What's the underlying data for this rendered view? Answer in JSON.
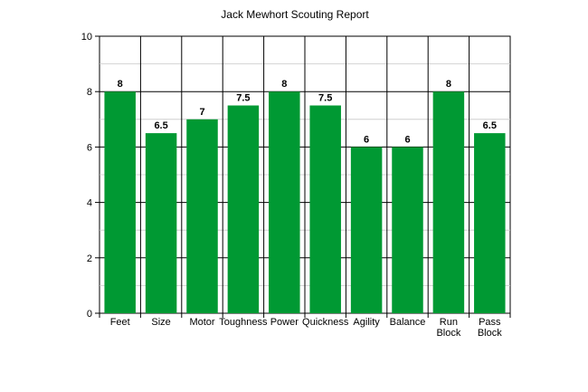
{
  "chart_data": {
    "type": "bar",
    "title": "Jack Mewhort Scouting Report",
    "xlabel": "",
    "ylabel": "",
    "ylim": [
      0,
      10
    ],
    "yticks": [
      0,
      2,
      4,
      6,
      8,
      10
    ],
    "minor_gridlines": [
      1,
      3,
      5,
      7,
      9
    ],
    "grid": true,
    "legend": "none",
    "bar_color": "#009933",
    "categories": [
      "Feet",
      "Size",
      "Motor",
      "Toughness",
      "Power",
      "Quickness",
      "Agility",
      "Balance",
      "Run Block",
      "Pass Block"
    ],
    "category_lines": [
      [
        "Feet"
      ],
      [
        "Size"
      ],
      [
        "Motor"
      ],
      [
        "Toughness"
      ],
      [
        "Power"
      ],
      [
        "Quickness"
      ],
      [
        "Agility"
      ],
      [
        "Balance"
      ],
      [
        "Run",
        "Block"
      ],
      [
        "Pass",
        "Block"
      ]
    ],
    "values": [
      8,
      6.5,
      7,
      7.5,
      8,
      7.5,
      6,
      6,
      8,
      6.5
    ],
    "value_labels": [
      "8",
      "6.5",
      "7",
      "7.5",
      "8",
      "7.5",
      "6",
      "6",
      "8",
      "6.5"
    ]
  }
}
